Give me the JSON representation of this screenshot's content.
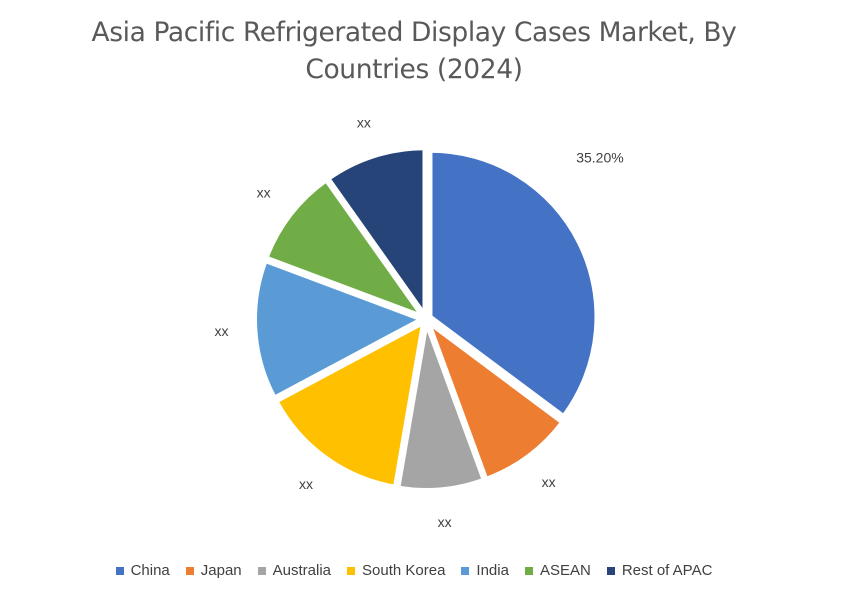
{
  "chart_data": {
    "type": "pie",
    "title": "Asia Pacific Refrigerated Display Cases Market, By Countries (2024)",
    "title_lines": [
      "Asia Pacific Refrigerated Display Cases Market, By",
      "Countries (2024)"
    ],
    "categories": [
      "China",
      "Japan",
      "Australia",
      "South Korea",
      "India",
      "ASEAN",
      "Rest of APAC"
    ],
    "values": [
      35.2,
      9.2,
      8.3,
      14.5,
      13.5,
      9.5,
      9.8
    ],
    "labels": [
      "35.20%",
      "xx",
      "xx",
      "xx",
      "xx",
      "xx",
      "xx"
    ],
    "colors": [
      "#4472C4",
      "#ED7D31",
      "#A5A5A5",
      "#FFC000",
      "#5B9BD5",
      "#70AD47",
      "#264478"
    ],
    "start_angle": "12 o'clock",
    "direction": "clockwise",
    "exploded": true,
    "legend_position": "bottom"
  }
}
